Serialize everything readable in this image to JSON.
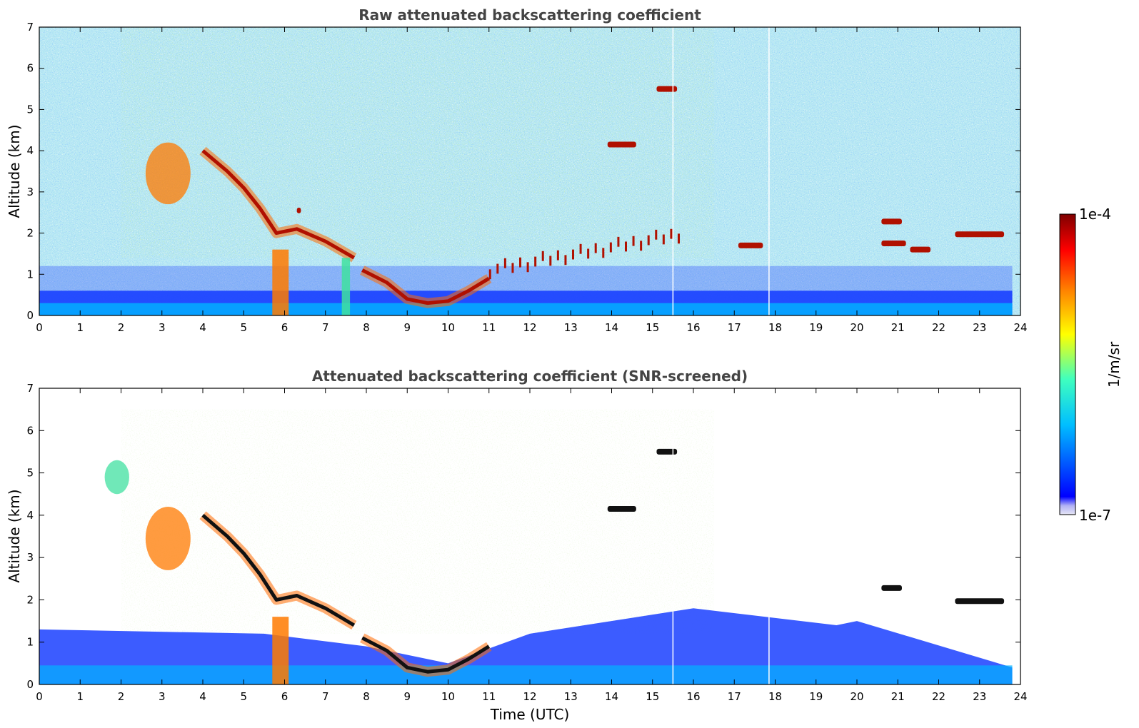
{
  "chart_data": [
    {
      "type": "heatmap",
      "title": "Raw attenuated backscattering coefficient",
      "xlabel": "",
      "ylabel": "Altitude (km)",
      "xlim": [
        0,
        24
      ],
      "ylim": [
        0,
        7
      ],
      "x_ticks": [
        "0",
        "1",
        "2",
        "3",
        "4",
        "5",
        "6",
        "7",
        "8",
        "9",
        "10",
        "11",
        "12",
        "13",
        "14",
        "15",
        "16",
        "17",
        "18",
        "19",
        "20",
        "21",
        "22",
        "23",
        "24"
      ],
      "y_ticks": [
        "0",
        "1",
        "2",
        "3",
        "4",
        "5",
        "6",
        "7"
      ],
      "background_noise": "dense noise at all altitudes",
      "features": [
        {
          "kind": "boundary_layer",
          "time_start": 0,
          "time_end": 23.8,
          "altitude_top": 0.6,
          "level": "low"
        },
        {
          "kind": "aerosol_plume",
          "time_start": 2.6,
          "time_end": 3.7,
          "altitude_bottom": 2.7,
          "altitude_top": 4.2,
          "level": "high"
        },
        {
          "kind": "descending_cloud",
          "points": [
            [
              4.0,
              4.0
            ],
            [
              4.6,
              3.5
            ],
            [
              5.0,
              3.1
            ],
            [
              5.4,
              2.6
            ],
            [
              5.8,
              2.0
            ],
            [
              6.3,
              2.1
            ],
            [
              7.0,
              1.8
            ],
            [
              7.7,
              1.4
            ]
          ],
          "level": "very high"
        },
        {
          "kind": "cloud",
          "time_start": 6.3,
          "time_end": 6.4,
          "altitude": 2.55,
          "level": "very high"
        },
        {
          "kind": "precipitation",
          "time_start": 5.7,
          "time_end": 6.1,
          "altitude_top": 1.6,
          "level": "high"
        },
        {
          "kind": "precipitation",
          "time_start": 7.4,
          "time_end": 7.6,
          "altitude_top": 1.4,
          "level": "medium"
        },
        {
          "kind": "low_cloud_base",
          "points": [
            [
              7.9,
              1.1
            ],
            [
              8.5,
              0.8
            ],
            [
              9.0,
              0.4
            ],
            [
              9.5,
              0.3
            ],
            [
              10.0,
              0.35
            ],
            [
              10.5,
              0.6
            ],
            [
              11.0,
              0.9
            ]
          ],
          "level": "very high"
        },
        {
          "kind": "broken_cloud",
          "time_start": 11.0,
          "time_end": 15.8,
          "altitude_bottom": 1.0,
          "altitude_top": 1.9,
          "level": "very high"
        },
        {
          "kind": "cloud",
          "time_start": 13.9,
          "time_end": 14.6,
          "altitude": 4.15,
          "level": "very high"
        },
        {
          "kind": "cloud",
          "time_start": 15.1,
          "time_end": 15.6,
          "altitude": 5.5,
          "level": "very high"
        },
        {
          "kind": "cloud",
          "time_start": 17.1,
          "time_end": 17.7,
          "altitude": 1.7,
          "level": "very high"
        },
        {
          "kind": "cloud",
          "time_start": 20.6,
          "time_end": 21.2,
          "altitude": 1.75,
          "level": "very high"
        },
        {
          "kind": "cloud",
          "time_start": 20.6,
          "time_end": 21.1,
          "altitude": 2.28,
          "level": "very high"
        },
        {
          "kind": "cloud",
          "time_start": 21.3,
          "time_end": 21.8,
          "altitude": 1.6,
          "level": "very high"
        },
        {
          "kind": "cloud",
          "time_start": 22.4,
          "time_end": 23.6,
          "altitude": 1.97,
          "level": "very high"
        }
      ]
    },
    {
      "type": "heatmap",
      "title": "Attenuated backscattering coefficient (SNR-screened)",
      "xlabel": "Time (UTC)",
      "ylabel": "Altitude (km)",
      "xlim": [
        0,
        24
      ],
      "ylim": [
        0,
        7
      ],
      "x_ticks": [
        "0",
        "1",
        "2",
        "3",
        "4",
        "5",
        "6",
        "7",
        "8",
        "9",
        "10",
        "11",
        "12",
        "13",
        "14",
        "15",
        "16",
        "17",
        "18",
        "19",
        "20",
        "21",
        "22",
        "23",
        "24"
      ],
      "y_ticks": [
        "0",
        "1",
        "2",
        "3",
        "4",
        "5",
        "6",
        "7"
      ],
      "background_noise": "screened out above boundary layer, sparse specks remain",
      "features": [
        {
          "kind": "boundary_layer",
          "points": [
            [
              0,
              1.3
            ],
            [
              5.5,
              1.2
            ],
            [
              8.0,
              0.9
            ],
            [
              10.0,
              0.5
            ],
            [
              12.0,
              1.2
            ],
            [
              16.0,
              1.8
            ],
            [
              19.5,
              1.4
            ],
            [
              20.0,
              1.5
            ],
            [
              23.8,
              0.4
            ]
          ],
          "level": "low"
        },
        {
          "kind": "aerosol_plume",
          "time_start": 1.6,
          "time_end": 2.2,
          "altitude_bottom": 4.5,
          "altitude_top": 5.3,
          "level": "medium"
        },
        {
          "kind": "aerosol_plume",
          "time_start": 2.6,
          "time_end": 3.7,
          "altitude_bottom": 2.7,
          "altitude_top": 4.2,
          "level": "high"
        },
        {
          "kind": "descending_cloud",
          "points": [
            [
              4.0,
              4.0
            ],
            [
              4.6,
              3.5
            ],
            [
              5.0,
              3.1
            ],
            [
              5.4,
              2.6
            ],
            [
              5.8,
              2.0
            ],
            [
              6.3,
              2.1
            ],
            [
              7.0,
              1.8
            ],
            [
              7.7,
              1.4
            ]
          ],
          "level": "saturated"
        },
        {
          "kind": "precipitation",
          "time_start": 5.7,
          "time_end": 6.1,
          "altitude_top": 1.6,
          "level": "high"
        },
        {
          "kind": "low_cloud_base",
          "points": [
            [
              7.9,
              1.1
            ],
            [
              8.5,
              0.8
            ],
            [
              9.0,
              0.4
            ],
            [
              9.5,
              0.3
            ],
            [
              10.0,
              0.35
            ],
            [
              10.5,
              0.6
            ],
            [
              11.0,
              0.9
            ]
          ],
          "level": "saturated"
        },
        {
          "kind": "cloud",
          "time_start": 13.9,
          "time_end": 14.6,
          "altitude": 4.15,
          "level": "saturated"
        },
        {
          "kind": "cloud",
          "time_start": 15.1,
          "time_end": 15.6,
          "altitude": 5.5,
          "level": "saturated"
        },
        {
          "kind": "cloud",
          "time_start": 20.6,
          "time_end": 21.1,
          "altitude": 2.28,
          "level": "saturated"
        },
        {
          "kind": "cloud",
          "time_start": 22.4,
          "time_end": 23.6,
          "altitude": 1.97,
          "level": "saturated"
        }
      ]
    }
  ],
  "colorbar": {
    "max_label": "1e-4",
    "min_label": "1e-7",
    "unit_label": "1/m/sr",
    "colormap": "jet",
    "colors": [
      "#e6e6f5",
      "#0000ff",
      "#00bfff",
      "#7fff7f",
      "#ffff00",
      "#ff7f00",
      "#ff0000",
      "#7f0000"
    ]
  }
}
